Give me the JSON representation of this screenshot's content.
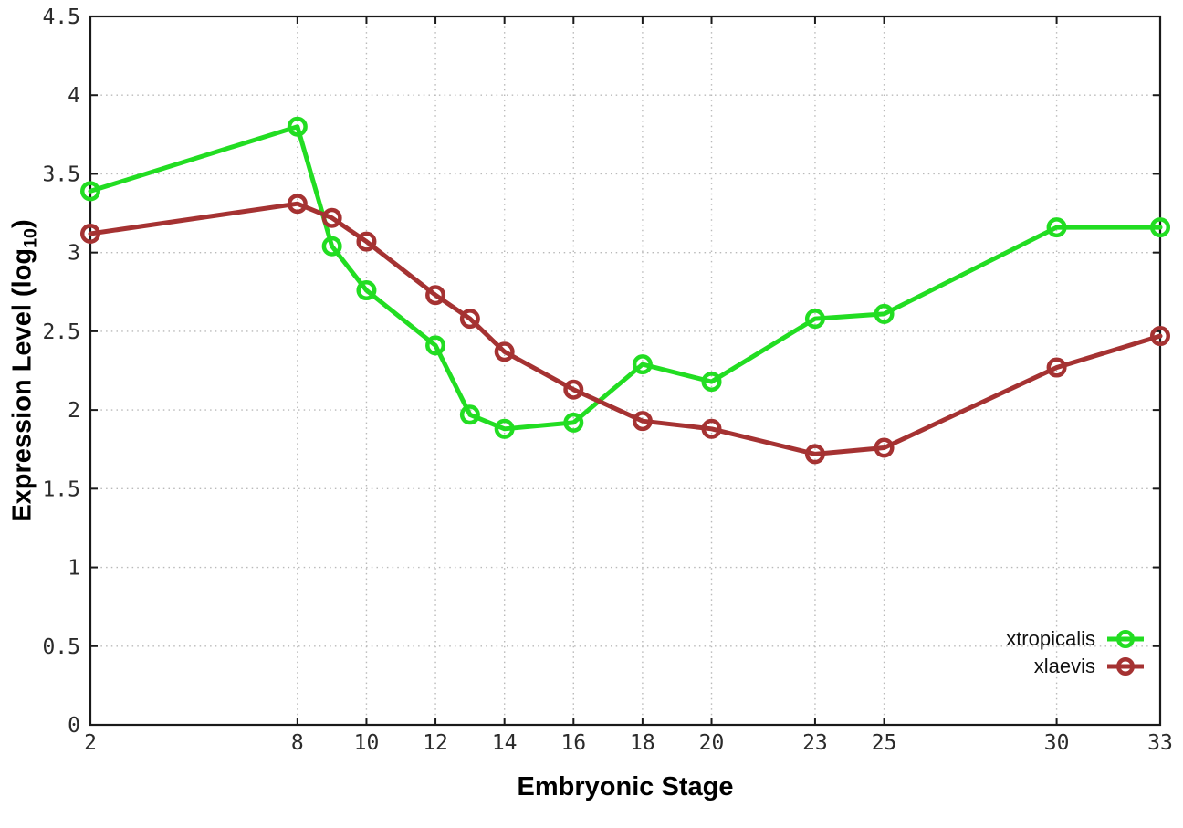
{
  "figure": {
    "xlabel": "Embryonic Stage",
    "ylabel_prefix": "Expression Level (log",
    "ylabel_sub": "10",
    "ylabel_suffix": ")"
  },
  "legend": {
    "items": [
      {
        "label": "xtropicalis",
        "color": "#22dd22"
      },
      {
        "label": "xlaevis",
        "color": "#a53232"
      }
    ]
  },
  "chart_data": {
    "type": "line",
    "title": "",
    "xlabel": "Embryonic Stage",
    "ylabel": "Expression Level (log10)",
    "x": [
      2,
      8,
      9,
      10,
      12,
      13,
      14,
      16,
      18,
      20,
      23,
      25,
      30,
      33
    ],
    "series": [
      {
        "name": "xtropicalis",
        "color": "#22dd22",
        "values": [
          3.39,
          3.8,
          3.04,
          2.76,
          2.41,
          1.97,
          1.88,
          1.92,
          2.29,
          2.18,
          2.58,
          2.61,
          3.16,
          3.16
        ]
      },
      {
        "name": "xlaevis",
        "color": "#a53232",
        "values": [
          3.12,
          3.31,
          3.22,
          3.07,
          2.73,
          2.58,
          2.37,
          2.13,
          1.93,
          1.88,
          1.72,
          1.76,
          2.27,
          2.47
        ]
      }
    ],
    "xlim": [
      2,
      33
    ],
    "ylim": [
      0,
      4.5
    ],
    "x_ticks": [
      2,
      8,
      10,
      12,
      14,
      16,
      18,
      20,
      23,
      25,
      30,
      33
    ],
    "y_ticks": [
      0,
      0.5,
      1,
      1.5,
      2,
      2.5,
      3,
      3.5,
      4,
      4.5
    ],
    "grid": true,
    "legend_position": "bottom-right",
    "marker": "open-circle",
    "style": {
      "grid_color": "#b9b9b9",
      "border_color": "#1a1a1a",
      "line_width": 5,
      "marker_radius": 8.75,
      "marker_stroke": 4.5
    }
  }
}
